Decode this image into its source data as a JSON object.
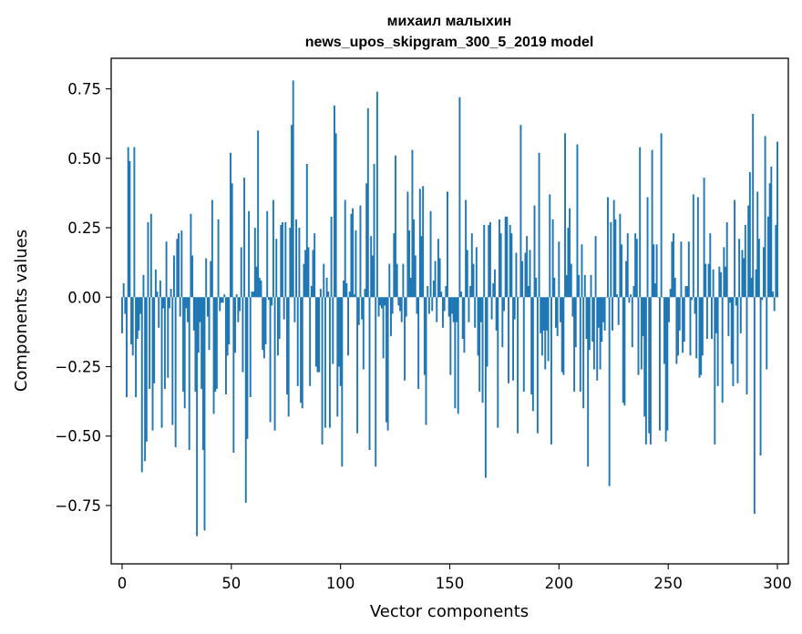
{
  "chart_data": {
    "type": "bar",
    "title": "михаил малыхин",
    "subtitle": "news_upos_skipgram_300_5_2019 model",
    "xlabel": "Vector components",
    "ylabel": "Components values",
    "xlim": [
      -5,
      305
    ],
    "ylim": [
      -0.96,
      0.86
    ],
    "x_ticks": [
      0,
      50,
      100,
      150,
      200,
      250,
      300
    ],
    "x_tick_labels": [
      "0",
      "50",
      "100",
      "150",
      "200",
      "250",
      "300"
    ],
    "y_ticks": [
      -0.75,
      -0.5,
      -0.25,
      0.0,
      0.25,
      0.5,
      0.75
    ],
    "y_tick_labels": [
      "−0.75",
      "−0.50",
      "−0.25",
      "0.00",
      "0.25",
      "0.50",
      "0.75"
    ],
    "bar_color": "#1f77b4",
    "grid": false,
    "values": [
      -0.13,
      0.05,
      -0.06,
      -0.36,
      0.54,
      0.49,
      -0.17,
      -0.21,
      0.54,
      -0.36,
      -0.15,
      -0.12,
      -0.06,
      -0.63,
      0.08,
      -0.59,
      -0.52,
      0.27,
      -0.33,
      0.3,
      -0.48,
      -0.31,
      0.1,
      0.02,
      -0.11,
      0.06,
      -0.47,
      -0.04,
      -0.33,
      0.2,
      -0.29,
      -0.04,
      0.03,
      -0.46,
      0.15,
      -0.54,
      0.21,
      0.23,
      -0.07,
      0.24,
      -0.34,
      -0.4,
      -0.04,
      -0.09,
      -0.55,
      0.3,
      0.15,
      -0.12,
      -0.34,
      -0.86,
      -0.2,
      -0.09,
      -0.33,
      -0.55,
      -0.84,
      0.14,
      -0.07,
      -0.19,
      0.13,
      0.35,
      -0.42,
      -0.34,
      -0.33,
      0.28,
      -0.05,
      -0.02,
      -0.02,
      0.01,
      -0.35,
      -0.21,
      -0.17,
      0.52,
      0.41,
      -0.56,
      -0.2,
      0.01,
      -0.09,
      -0.05,
      0.18,
      -0.27,
      0.43,
      -0.74,
      -0.51,
      0.31,
      -0.36,
      0.02,
      0.02,
      0.25,
      0.11,
      0.6,
      0.07,
      0.06,
      -0.19,
      -0.22,
      -0.17,
      0.31,
      -0.01,
      -0.45,
      -0.03,
      0.35,
      -0.48,
      0.21,
      -0.21,
      -0.15,
      0.26,
      0.27,
      -0.08,
      0.27,
      -0.35,
      -0.43,
      0.25,
      0.62,
      0.78,
      -0.09,
      0.28,
      -0.32,
      0.25,
      -0.38,
      -0.4,
      0.12,
      0.17,
      0.48,
      0.18,
      -0.32,
      0.04,
      0.17,
      0.23,
      -0.25,
      -0.27,
      -0.27,
      0.03,
      -0.53,
      0.12,
      -0.47,
      0.07,
      0.02,
      -0.47,
      0.29,
      -0.24,
      0.69,
      0.59,
      -0.43,
      -0.25,
      -0.32,
      -0.61,
      0.06,
      0.35,
      0.05,
      -0.21,
      0.02,
      0.3,
      0.32,
      0.01,
      0.24,
      -0.49,
      -0.1,
      0.33,
      -0.08,
      -0.26,
      0.03,
      0.41,
      0.68,
      -0.55,
      0.22,
      0.15,
      0.48,
      -0.61,
      0.74,
      -0.07,
      -0.03,
      -0.04,
      -0.22,
      -0.03,
      -0.45,
      -0.48,
      0.12,
      -0.14,
      -0.06,
      0.23,
      0.51,
      0.12,
      -0.03,
      -0.05,
      -0.09,
      0.12,
      -0.3,
      -0.07,
      0.38,
      0.24,
      0.07,
      0.53,
      0.28,
      0.15,
      -0.06,
      -0.33,
      0.39,
      0.22,
      0.4,
      -0.28,
      -0.46,
      0.04,
      -0.06,
      0.31,
      -0.05,
      0.06,
      0.13,
      -0.09,
      0.21,
      0.14,
      0.02,
      -0.11,
      -0.05,
      0.04,
      0.38,
      -0.07,
      -0.28,
      -0.06,
      -0.09,
      -0.4,
      -0.09,
      -0.42,
      0.72,
      0.02,
      -0.15,
      -0.2,
      0.35,
      0.17,
      -0.09,
      0.04,
      0.23,
      0.12,
      -0.11,
      0.18,
      -0.21,
      -0.34,
      -0.09,
      -0.38,
      0.26,
      -0.65,
      -0.25,
      0.26,
      0.27,
      -0.08,
      0.05,
      0.1,
      -0.12,
      -0.47,
      0.28,
      0.23,
      -0.18,
      -0.05,
      0.29,
      0.29,
      -0.31,
      0.26,
      0.23,
      -0.3,
      -0.08,
      0.16,
      -0.49,
      0.0,
      0.62,
      0.13,
      -0.34,
      0.16,
      0.22,
      0.04,
      0.17,
      -0.35,
      -0.41,
      0.33,
      0.07,
      -0.49,
      0.52,
      -0.13,
      -0.21,
      -0.12,
      -0.26,
      -0.12,
      -0.23,
      0.37,
      -0.53,
      0.28,
      0.07,
      -0.11,
      -0.14,
      0.2,
      -0.09,
      -0.27,
      -0.28,
      0.59,
      0.08,
      0.25,
      0.32,
      0.12,
      -0.07,
      -0.34,
      -0.18,
      0.55,
      0.08,
      -0.34,
      0.19,
      -0.4,
      0.08,
      -0.15,
      -0.61,
      -0.19,
      0.08,
      -0.16,
      -0.26,
      0.22,
      -0.3,
      -0.11,
      -0.26,
      -0.16,
      -0.09,
      -0.12,
      0.0,
      0.36,
      -0.68,
      0.27,
      -0.12,
      0.35,
      0.28,
      0.01,
      -0.1,
      0.3,
      0.19,
      -0.38,
      -0.39,
      0.13,
      0.23,
      -0.02,
      0.01,
      -0.18,
      0.04,
      0.23,
      0.21,
      -0.28,
      0.54,
      -0.26,
      -0.14,
      -0.43,
      -0.53,
      0.36,
      -0.49,
      -0.53,
      0.53,
      0.19,
      0.05,
      0.19,
      0.0,
      -0.48,
      0.59,
      0.0,
      -0.24,
      -0.52,
      -0.48,
      -0.09,
      0.03,
      0.2,
      0.23,
      0.07,
      -0.24,
      -0.21,
      -0.12,
      0.2,
      -0.2,
      -0.16,
      0.04,
      0.04,
      0.2,
      -0.21,
      -0.01,
      0.37,
      -0.06,
      -0.22,
      0.36,
      -0.29,
      -0.28,
      -0.21,
      0.43,
      0.12,
      -0.15,
      0.12,
      0.23,
      -0.15,
      0.1,
      -0.53,
      -0.13,
      -0.32,
      0.11,
      0.09,
      -0.38,
      0.18,
      0.11,
      0.27,
      -0.14,
      -0.02,
      -0.24,
      -0.32,
      0.35,
      -0.03,
      -0.31,
      0.21,
      -0.13,
      0.17,
      0.14,
      0.26,
      -0.35,
      0.33,
      0.45,
      0.07,
      0.66,
      -0.78,
      0.1,
      0.38,
      0.21,
      -0.57,
      -0.01,
      0.18,
      0.58,
      -0.26,
      0.29,
      0.41,
      0.47,
      0.02,
      -0.05,
      0.26,
      0.56
    ]
  }
}
